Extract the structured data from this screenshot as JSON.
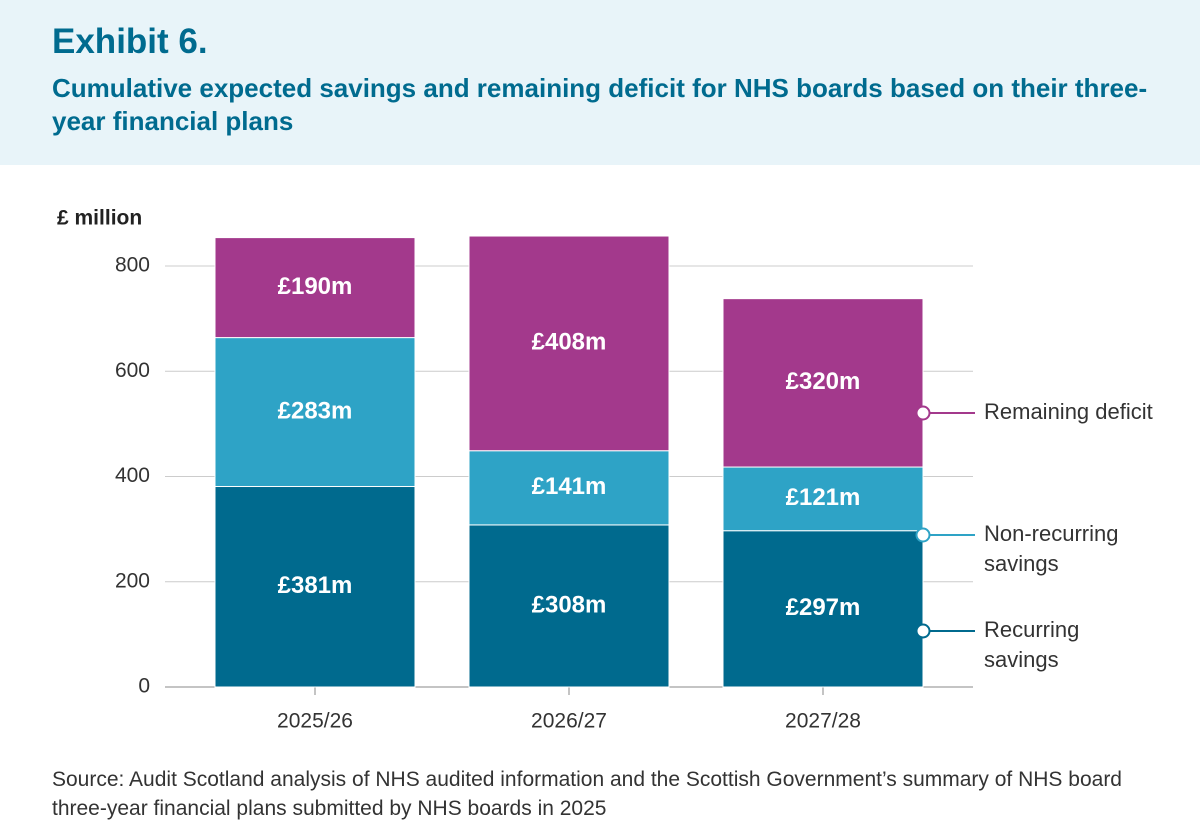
{
  "chart_data": {
    "type": "stacked_bar",
    "title": "Exhibit 6.",
    "subtitle": "Cumulative expected savings and remaining deficit for NHS boards based on their three-year financial plans",
    "y_label": "£ million",
    "categories": [
      "2025/26",
      "2026/27",
      "2027/28"
    ],
    "series": [
      {
        "name": "Recurring savings",
        "color": "#006a8e",
        "values": [
          381,
          308,
          297
        ],
        "value_labels": [
          "£381m",
          "£308m",
          "£297m"
        ]
      },
      {
        "name": "Non-recurring savings",
        "color": "#2ea3c6",
        "values": [
          283,
          141,
          121
        ],
        "value_labels": [
          "£283m",
          "£141m",
          "£121m"
        ]
      },
      {
        "name": "Remaining deficit",
        "color": "#a3398c",
        "values": [
          190,
          408,
          320
        ],
        "value_labels": [
          "£190m",
          "£408m",
          "£320m"
        ]
      }
    ],
    "ylim": [
      0,
      900
    ],
    "yticks": [
      0,
      200,
      400,
      600,
      800
    ],
    "grid": true,
    "source": "Source: Audit Scotland analysis of NHS audited information and the Scottish Government’s summary of NHS board three-year financial plans submitted by NHS boards in 2025"
  }
}
